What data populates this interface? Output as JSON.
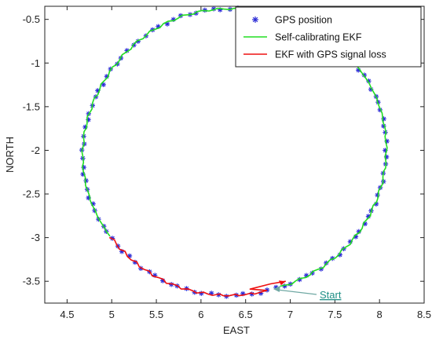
{
  "chart_data": {
    "type": "line",
    "title": "",
    "xlabel": "EAST",
    "ylabel": "NORTH",
    "xlim": [
      4.25,
      8.5
    ],
    "ylim": [
      -3.75,
      -0.35
    ],
    "x_ticks": [
      "4.5",
      "5",
      "5.5",
      "6",
      "6.5",
      "7",
      "7.5",
      "8",
      "8.5"
    ],
    "y_ticks": [
      "-0.5",
      "-1",
      "-1.5",
      "-2",
      "-2.5",
      "-3",
      "-3.5"
    ],
    "x_tick_values": [
      4.5,
      5,
      5.5,
      6,
      6.5,
      7,
      7.5,
      8,
      8.5
    ],
    "y_tick_values": [
      -0.5,
      -1,
      -1.5,
      -2,
      -2.5,
      -3,
      -3.5
    ],
    "grid": false,
    "legend_position": "top-right",
    "trajectory_center": [
      6.375,
      -2.02
    ],
    "trajectory_radius_east": 1.7,
    "trajectory_radius_north": 1.64,
    "gps_marker_count": 115,
    "series": [
      {
        "name": "GPS position",
        "style": "markers",
        "marker": "*",
        "color": "#2b2bd6",
        "points": [
          [
            6.8,
            -3.55
          ],
          [
            7.4,
            -3.4
          ],
          [
            7.85,
            -3.0
          ],
          [
            8.05,
            -2.0
          ],
          [
            7.86,
            -1.1
          ],
          [
            7.35,
            -0.65
          ],
          [
            6.7,
            -0.4
          ],
          [
            6.0,
            -0.45
          ],
          [
            5.3,
            -0.9
          ],
          [
            4.85,
            -1.4
          ],
          [
            4.67,
            -2.0
          ],
          [
            4.8,
            -2.8
          ],
          [
            5.2,
            -3.3
          ],
          [
            5.8,
            -3.62
          ],
          [
            6.3,
            -3.64
          ]
        ]
      },
      {
        "name": "Self-calibrating EKF",
        "style": "line",
        "color": "#22dd22",
        "points": [
          [
            6.8,
            -3.57
          ],
          [
            7.4,
            -3.4
          ],
          [
            7.85,
            -3.0
          ],
          [
            8.06,
            -2.0
          ],
          [
            7.87,
            -1.1
          ],
          [
            7.35,
            -0.65
          ],
          [
            6.7,
            -0.4
          ],
          [
            6.0,
            -0.45
          ],
          [
            5.3,
            -0.9
          ],
          [
            4.86,
            -1.4
          ]
        ]
      },
      {
        "name": "EKF with GPS signal loss",
        "style": "line",
        "color": "#ee1111",
        "points": [
          [
            4.84,
            -1.38
          ],
          [
            4.67,
            -2.0
          ],
          [
            4.8,
            -2.8
          ],
          [
            5.2,
            -3.3
          ],
          [
            5.8,
            -3.62
          ],
          [
            6.3,
            -3.64
          ],
          [
            6.6,
            -3.59
          ],
          [
            6.85,
            -3.53
          ],
          [
            6.95,
            -3.5
          ]
        ]
      }
    ],
    "annotations": [
      {
        "text": "Start",
        "at": [
          6.8,
          -3.57
        ],
        "color": "#1f8f86"
      }
    ]
  }
}
